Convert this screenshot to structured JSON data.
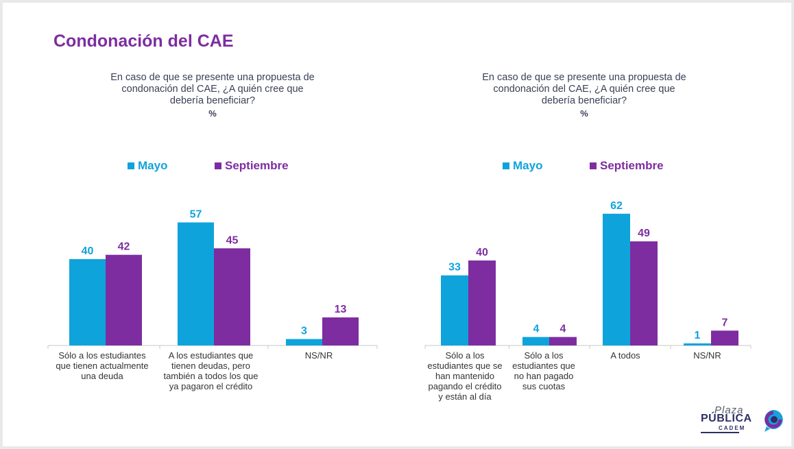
{
  "title": "Condonación del CAE",
  "legend": {
    "a": "Mayo",
    "b": "Septiembre"
  },
  "colors": {
    "a": "#0fa3dc",
    "b": "#7d2da0",
    "title": "#7d2da0",
    "axis": "#c8c8c8"
  },
  "charts": [
    {
      "question_lines": [
        "En caso de que se presente una propuesta de",
        "condonación del CAE, ¿A quién cree que",
        "debería beneficiar?"
      ],
      "unit": "%",
      "category_lines": [
        [
          "Sólo a los estudiantes",
          "que tienen actualmente",
          "una deuda"
        ],
        [
          "A los estudiantes que",
          "tienen deudas, pero",
          "también a todos los que",
          "ya pagaron el crédito"
        ],
        [
          "NS/NR"
        ]
      ]
    },
    {
      "question_lines": [
        "En caso de que se presente una propuesta de",
        "condonación del CAE, ¿A quién cree que",
        "debería beneficiar?"
      ],
      "unit": "%",
      "category_lines": [
        [
          "Sólo a los",
          "estudiantes que se",
          "han mantenido",
          "pagando el crédito",
          "y están al día"
        ],
        [
          "Sólo a los",
          "estudiantes que",
          "no han pagado",
          "sus cuotas"
        ],
        [
          "A todos"
        ],
        [
          "NS/NR"
        ]
      ]
    }
  ],
  "chart_data": [
    {
      "type": "bar",
      "title": "En caso de que se presente una propuesta de condonación del CAE, ¿A quién cree que debería beneficiar?",
      "ylabel": "%",
      "categories": [
        "Sólo a los estudiantes que tienen actualmente una deuda",
        "A los estudiantes que tienen deudas, pero también a todos los que ya pagaron el crédito",
        "NS/NR"
      ],
      "series": [
        {
          "name": "Mayo",
          "values": [
            40,
            57,
            3
          ]
        },
        {
          "name": "Septiembre",
          "values": [
            42,
            45,
            13
          ]
        }
      ],
      "ylim": [
        0,
        70
      ]
    },
    {
      "type": "bar",
      "title": "En caso de que se presente una propuesta de condonación del CAE, ¿A quién cree que debería beneficiar?",
      "ylabel": "%",
      "categories": [
        "Sólo a los estudiantes que se han mantenido pagando el crédito y están al día",
        "Sólo a los estudiantes que no han pagado sus cuotas",
        "A todos",
        "NS/NR"
      ],
      "series": [
        {
          "name": "Mayo",
          "values": [
            33,
            4,
            62,
            1
          ]
        },
        {
          "name": "Septiembre",
          "values": [
            40,
            4,
            49,
            7
          ]
        }
      ],
      "ylim": [
        0,
        70
      ]
    }
  ],
  "logo": {
    "line1": "Plaza",
    "line2": "PÚBLICA",
    "line3": "CADEM"
  }
}
